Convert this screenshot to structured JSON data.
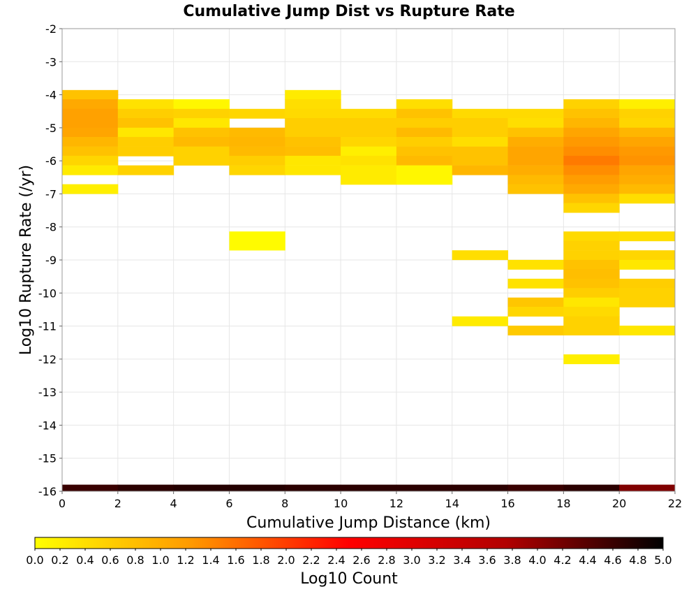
{
  "chart_data": {
    "type": "heatmap",
    "title": "Cumulative Jump Dist vs Rupture Rate",
    "xlabel": "Cumulative Jump Distance (km)",
    "ylabel": "Log10 Rupture Rate (/yr)",
    "xlim": [
      0,
      22
    ],
    "ylim": [
      -16,
      -2
    ],
    "x_ticks": [
      "0",
      "2",
      "4",
      "6",
      "8",
      "10",
      "12",
      "14",
      "16",
      "18",
      "20",
      "22"
    ],
    "y_ticks": [
      "-2",
      "-3",
      "-4",
      "-5",
      "-6",
      "-7",
      "-8",
      "-9",
      "-10",
      "-11",
      "-12",
      "-13",
      "-14",
      "-15",
      "-16"
    ],
    "x_bin_width": 2,
    "y_bin_height": 0.285,
    "grid": true,
    "colorbar": {
      "label": "Log10 Count",
      "range": [
        0,
        5
      ],
      "ticks": [
        "0.0",
        "0.2",
        "0.4",
        "0.6",
        "0.8",
        "1.0",
        "1.2",
        "1.4",
        "1.6",
        "1.8",
        "2.0",
        "2.2",
        "2.4",
        "2.6",
        "2.8",
        "3.0",
        "3.2",
        "3.4",
        "3.6",
        "3.8",
        "4.0",
        "4.2",
        "4.4",
        "4.6",
        "4.8",
        "5.0"
      ],
      "colors": [
        "#ffff00",
        "#ff9900",
        "#ff0000",
        "#b20000",
        "#000000"
      ]
    },
    "cells": [
      [
        0,
        -4.0,
        0.75
      ],
      [
        0,
        -4.28,
        1.05
      ],
      [
        0,
        -4.57,
        1.15
      ],
      [
        0,
        -4.85,
        1.15
      ],
      [
        0,
        -5.14,
        1.1
      ],
      [
        0,
        -5.42,
        0.9
      ],
      [
        0,
        -5.71,
        0.75
      ],
      [
        0,
        -5.99,
        0.5
      ],
      [
        0,
        -6.28,
        0.25
      ],
      [
        0,
        -6.85,
        0.2
      ],
      [
        2,
        -4.28,
        0.35
      ],
      [
        2,
        -4.57,
        0.6
      ],
      [
        2,
        -4.85,
        0.75
      ],
      [
        2,
        -5.14,
        0.3
      ],
      [
        2,
        -5.42,
        0.6
      ],
      [
        2,
        -5.71,
        0.6
      ],
      [
        2,
        -6.28,
        0.55
      ],
      [
        4,
        -4.28,
        0.1
      ],
      [
        4,
        -4.57,
        0.55
      ],
      [
        4,
        -4.85,
        0.3
      ],
      [
        4,
        -5.14,
        0.75
      ],
      [
        4,
        -5.42,
        0.85
      ],
      [
        4,
        -5.71,
        0.55
      ],
      [
        4,
        -5.99,
        0.55
      ],
      [
        6,
        -4.57,
        0.5
      ],
      [
        6,
        -5.14,
        0.85
      ],
      [
        6,
        -5.42,
        0.9
      ],
      [
        6,
        -5.71,
        0.85
      ],
      [
        6,
        -5.99,
        0.6
      ],
      [
        6,
        -6.28,
        0.5
      ],
      [
        6,
        -8.28,
        0.05
      ],
      [
        6,
        -8.56,
        0.05
      ],
      [
        8,
        -4.0,
        0.25
      ],
      [
        8,
        -4.28,
        0.4
      ],
      [
        8,
        -4.57,
        0.45
      ],
      [
        8,
        -4.85,
        0.6
      ],
      [
        8,
        -5.14,
        0.6
      ],
      [
        8,
        -5.42,
        0.75
      ],
      [
        8,
        -5.71,
        0.8
      ],
      [
        8,
        -5.99,
        0.3
      ],
      [
        8,
        -6.28,
        0.3
      ],
      [
        10,
        -4.57,
        0.45
      ],
      [
        10,
        -4.85,
        0.6
      ],
      [
        10,
        -5.14,
        0.6
      ],
      [
        10,
        -5.42,
        0.5
      ],
      [
        10,
        -5.71,
        0.2
      ],
      [
        10,
        -5.99,
        0.35
      ],
      [
        10,
        -6.28,
        0.25
      ],
      [
        10,
        -6.57,
        0.25
      ],
      [
        12,
        -4.28,
        0.4
      ],
      [
        12,
        -4.57,
        0.75
      ],
      [
        12,
        -4.85,
        0.6
      ],
      [
        12,
        -5.14,
        0.85
      ],
      [
        12,
        -5.42,
        0.6
      ],
      [
        12,
        -5.71,
        0.75
      ],
      [
        12,
        -5.99,
        0.85
      ],
      [
        12,
        -6.28,
        0.1
      ],
      [
        12,
        -6.57,
        0.1
      ],
      [
        14,
        -4.57,
        0.45
      ],
      [
        14,
        -4.85,
        0.6
      ],
      [
        14,
        -5.14,
        0.6
      ],
      [
        14,
        -5.42,
        0.4
      ],
      [
        14,
        -5.71,
        0.75
      ],
      [
        14,
        -5.99,
        0.75
      ],
      [
        14,
        -6.28,
        0.9
      ],
      [
        14,
        -8.85,
        0.4
      ],
      [
        14,
        -10.85,
        0.25
      ],
      [
        16,
        -4.57,
        0.45
      ],
      [
        16,
        -4.85,
        0.4
      ],
      [
        16,
        -5.14,
        0.75
      ],
      [
        16,
        -5.42,
        1.0
      ],
      [
        16,
        -5.71,
        1.1
      ],
      [
        16,
        -5.99,
        1.1
      ],
      [
        16,
        -6.28,
        1.0
      ],
      [
        16,
        -6.57,
        0.85
      ],
      [
        16,
        -6.85,
        0.75
      ],
      [
        16,
        -9.14,
        0.35
      ],
      [
        16,
        -9.71,
        0.35
      ],
      [
        16,
        -10.28,
        0.7
      ],
      [
        16,
        -10.56,
        0.5
      ],
      [
        16,
        -11.13,
        0.65
      ],
      [
        18,
        -4.28,
        0.55
      ],
      [
        18,
        -4.57,
        0.75
      ],
      [
        18,
        -4.85,
        0.9
      ],
      [
        18,
        -5.14,
        1.1
      ],
      [
        18,
        -5.42,
        1.25
      ],
      [
        18,
        -5.71,
        1.35
      ],
      [
        18,
        -5.99,
        1.5
      ],
      [
        18,
        -6.28,
        1.35
      ],
      [
        18,
        -6.57,
        1.2
      ],
      [
        18,
        -6.85,
        1.05
      ],
      [
        18,
        -7.14,
        0.75
      ],
      [
        18,
        -7.42,
        0.5
      ],
      [
        18,
        -8.28,
        0.45
      ],
      [
        18,
        -8.56,
        0.55
      ],
      [
        18,
        -8.85,
        0.55
      ],
      [
        18,
        -9.14,
        0.75
      ],
      [
        18,
        -9.42,
        0.8
      ],
      [
        18,
        -9.71,
        0.75
      ],
      [
        18,
        -9.99,
        0.6
      ],
      [
        18,
        -10.28,
        0.3
      ],
      [
        18,
        -10.56,
        0.45
      ],
      [
        18,
        -10.85,
        0.55
      ],
      [
        18,
        -11.13,
        0.55
      ],
      [
        18,
        -12.0,
        0.2
      ],
      [
        20,
        -4.28,
        0.2
      ],
      [
        20,
        -4.57,
        0.55
      ],
      [
        20,
        -4.85,
        0.5
      ],
      [
        20,
        -5.14,
        0.9
      ],
      [
        20,
        -5.42,
        1.1
      ],
      [
        20,
        -5.71,
        1.25
      ],
      [
        20,
        -5.99,
        1.3
      ],
      [
        20,
        -6.28,
        1.1
      ],
      [
        20,
        -6.57,
        1.0
      ],
      [
        20,
        -6.85,
        0.85
      ],
      [
        20,
        -7.14,
        0.4
      ],
      [
        20,
        -8.28,
        0.4
      ],
      [
        20,
        -8.85,
        0.5
      ],
      [
        20,
        -9.14,
        0.3
      ],
      [
        20,
        -9.71,
        0.6
      ],
      [
        20,
        -9.99,
        0.55
      ],
      [
        20,
        -10.28,
        0.55
      ],
      [
        20,
        -11.13,
        0.3
      ]
    ],
    "bottom_band": [
      [
        0,
        4.6
      ],
      [
        2,
        4.7
      ],
      [
        4,
        4.75
      ],
      [
        6,
        4.75
      ],
      [
        8,
        4.7
      ],
      [
        10,
        4.7
      ],
      [
        12,
        4.7
      ],
      [
        14,
        4.7
      ],
      [
        16,
        4.6
      ],
      [
        18,
        4.7
      ],
      [
        20,
        4.1
      ]
    ]
  }
}
